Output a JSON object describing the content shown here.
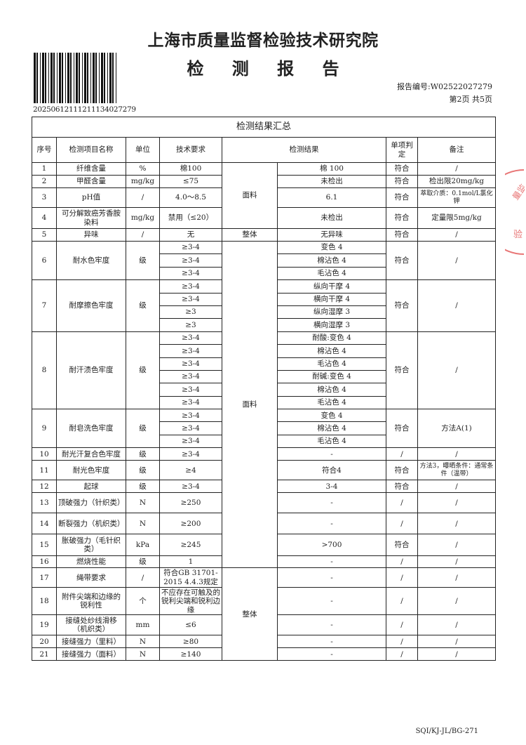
{
  "header": {
    "institute": "上海市质量监督检验技术研究院",
    "title": "检 测 报 告",
    "barcode_number": "20250612111211134027279",
    "report_no": "报告编号:W02522027279",
    "page_info": "第2页  共5页"
  },
  "table": {
    "caption": "检测结果汇总",
    "columns": [
      "序号",
      "检测项目名称",
      "单位",
      "技术要求",
      "检测结果",
      "单项判定",
      "备注"
    ],
    "rows": [
      {
        "no": "1",
        "name": "纤维含量",
        "unit": "%",
        "req": [
          "棉100"
        ],
        "part": "面料",
        "result": [
          "棉 100"
        ],
        "verdict": "符合",
        "remark": "/"
      },
      {
        "no": "2",
        "name": "甲醛含量",
        "unit": "mg/kg",
        "req": [
          "≤75"
        ],
        "part": "面料",
        "result": [
          "未检出"
        ],
        "verdict": "符合",
        "remark": "检出限20mg/kg"
      },
      {
        "no": "3",
        "name": "pH值",
        "unit": "/",
        "req": [
          "4.0～8.5"
        ],
        "part": "面料",
        "result": [
          "6.1"
        ],
        "verdict": "符合",
        "remark": "萃取介质：0.1mol/L氯化钾"
      },
      {
        "no": "4",
        "name": "可分解致癌芳香胺染料",
        "unit": "mg/kg",
        "req": [
          "禁用（≤20）"
        ],
        "part": "面料",
        "result": [
          "未检出"
        ],
        "verdict": "符合",
        "remark": "定量限5mg/kg"
      },
      {
        "no": "5",
        "name": "异味",
        "unit": "/",
        "req": [
          "无"
        ],
        "part": "整体",
        "result": [
          "无异味"
        ],
        "verdict": "符合",
        "remark": "/"
      },
      {
        "no": "6",
        "name": "耐水色牢度",
        "unit": "级",
        "req": [
          "≥3-4",
          "≥3-4",
          "≥3-4"
        ],
        "part": "面料*",
        "result": [
          "变色 4",
          "棉沾色 4",
          "毛沾色 4"
        ],
        "verdict": "符合",
        "remark": "/"
      },
      {
        "no": "7",
        "name": "耐摩擦色牢度",
        "unit": "级",
        "req": [
          "≥3-4",
          "≥3-4",
          "≥3",
          "≥3"
        ],
        "part": "面料*",
        "result": [
          "纵向干摩 4",
          "横向干摩 4",
          "纵向湿摩 3",
          "横向湿摩 3"
        ],
        "verdict": "符合",
        "remark": "/"
      },
      {
        "no": "8",
        "name": "耐汗渍色牢度",
        "unit": "级",
        "req": [
          "≥3-4",
          "≥3-4",
          "≥3-4",
          "≥3-4",
          "≥3-4",
          "≥3-4"
        ],
        "part": "面料*",
        "result": [
          "耐酸:变色 4",
          "棉沾色 4",
          "毛沾色 4",
          "耐碱:变色 4",
          "棉沾色 4",
          "毛沾色 4"
        ],
        "verdict": "符合",
        "remark": "/"
      },
      {
        "no": "9",
        "name": "耐皂洗色牢度",
        "unit": "级",
        "req": [
          "≥3-4",
          "≥3-4",
          "≥3-4"
        ],
        "part": "面料*",
        "result": [
          "变色 4",
          "棉沾色 4",
          "毛沾色 4"
        ],
        "verdict": "符合",
        "remark": "方法A(1)"
      },
      {
        "no": "10",
        "name": "耐光汗复合色牢度",
        "unit": "级",
        "req": [
          "≥3-4"
        ],
        "part": "面料*",
        "result": [
          "-"
        ],
        "verdict": "/",
        "remark": "/"
      },
      {
        "no": "11",
        "name": "耐光色牢度",
        "unit": "级",
        "req": [
          "≥4"
        ],
        "part": "面料*",
        "result": [
          "符合4"
        ],
        "verdict": "符合",
        "remark": "方法3，曝晒条件：通常条件（温带）"
      },
      {
        "no": "12",
        "name": "起球",
        "unit": "级",
        "req": [
          "≥3-4"
        ],
        "part": "面料*",
        "result": [
          "3-4"
        ],
        "verdict": "符合",
        "remark": "/"
      },
      {
        "no": "13",
        "name": "顶破强力（针织类）",
        "unit": "N",
        "req": [
          "≥250"
        ],
        "part": "面料*",
        "result": [
          "-"
        ],
        "verdict": "/",
        "remark": "/"
      },
      {
        "no": "14",
        "name": "断裂强力（机织类）",
        "unit": "N",
        "req": [
          "≥200"
        ],
        "part": "面料*",
        "result": [
          "-"
        ],
        "verdict": "/",
        "remark": "/"
      },
      {
        "no": "15",
        "name": "胀破强力（毛针织类）",
        "unit": "kPa",
        "req": [
          "≥245"
        ],
        "part": "面料*",
        "result": [
          ">700"
        ],
        "verdict": "符合",
        "remark": "/"
      },
      {
        "no": "16",
        "name": "燃烧性能",
        "unit": "级",
        "req": [
          "1"
        ],
        "part": "面料*",
        "result": [
          "-"
        ],
        "verdict": "/",
        "remark": "/"
      },
      {
        "no": "17",
        "name": "绳带要求",
        "unit": "/",
        "req": [
          "符合GB 31701-2015 4.4.3规定"
        ],
        "part": "整体*",
        "result": [
          "-"
        ],
        "verdict": "/",
        "remark": "/"
      },
      {
        "no": "18",
        "name": "附件尖端和边缘的锐利性",
        "unit": "个",
        "req": [
          "不应存在可触及的锐利尖端和锐利边缘"
        ],
        "part": "整体*",
        "result": [
          "-"
        ],
        "verdict": "/",
        "remark": "/"
      },
      {
        "no": "19",
        "name": "接缝处纱线滑移（机织类）",
        "unit": "mm",
        "req": [
          "≤6"
        ],
        "part": "整体*",
        "result": [
          "-"
        ],
        "verdict": "/",
        "remark": "/"
      },
      {
        "no": "20",
        "name": "接缝强力（里料）",
        "unit": "N",
        "req": [
          "≥80"
        ],
        "part": "整体*",
        "result": [
          "-"
        ],
        "verdict": "/",
        "remark": "/"
      },
      {
        "no": "21",
        "name": "接缝强力（面料）",
        "unit": "N",
        "req": [
          "≥140"
        ],
        "part": "整体*",
        "result": [
          "-"
        ],
        "verdict": "/",
        "remark": "/"
      }
    ]
  },
  "footer": {
    "form_code": "SQI/KJ-JL/BG-271"
  },
  "stamp": {
    "text_top": "量监",
    "text_bottom": "验"
  },
  "colors": {
    "stamp": "#e04848",
    "ink": "#222222"
  }
}
